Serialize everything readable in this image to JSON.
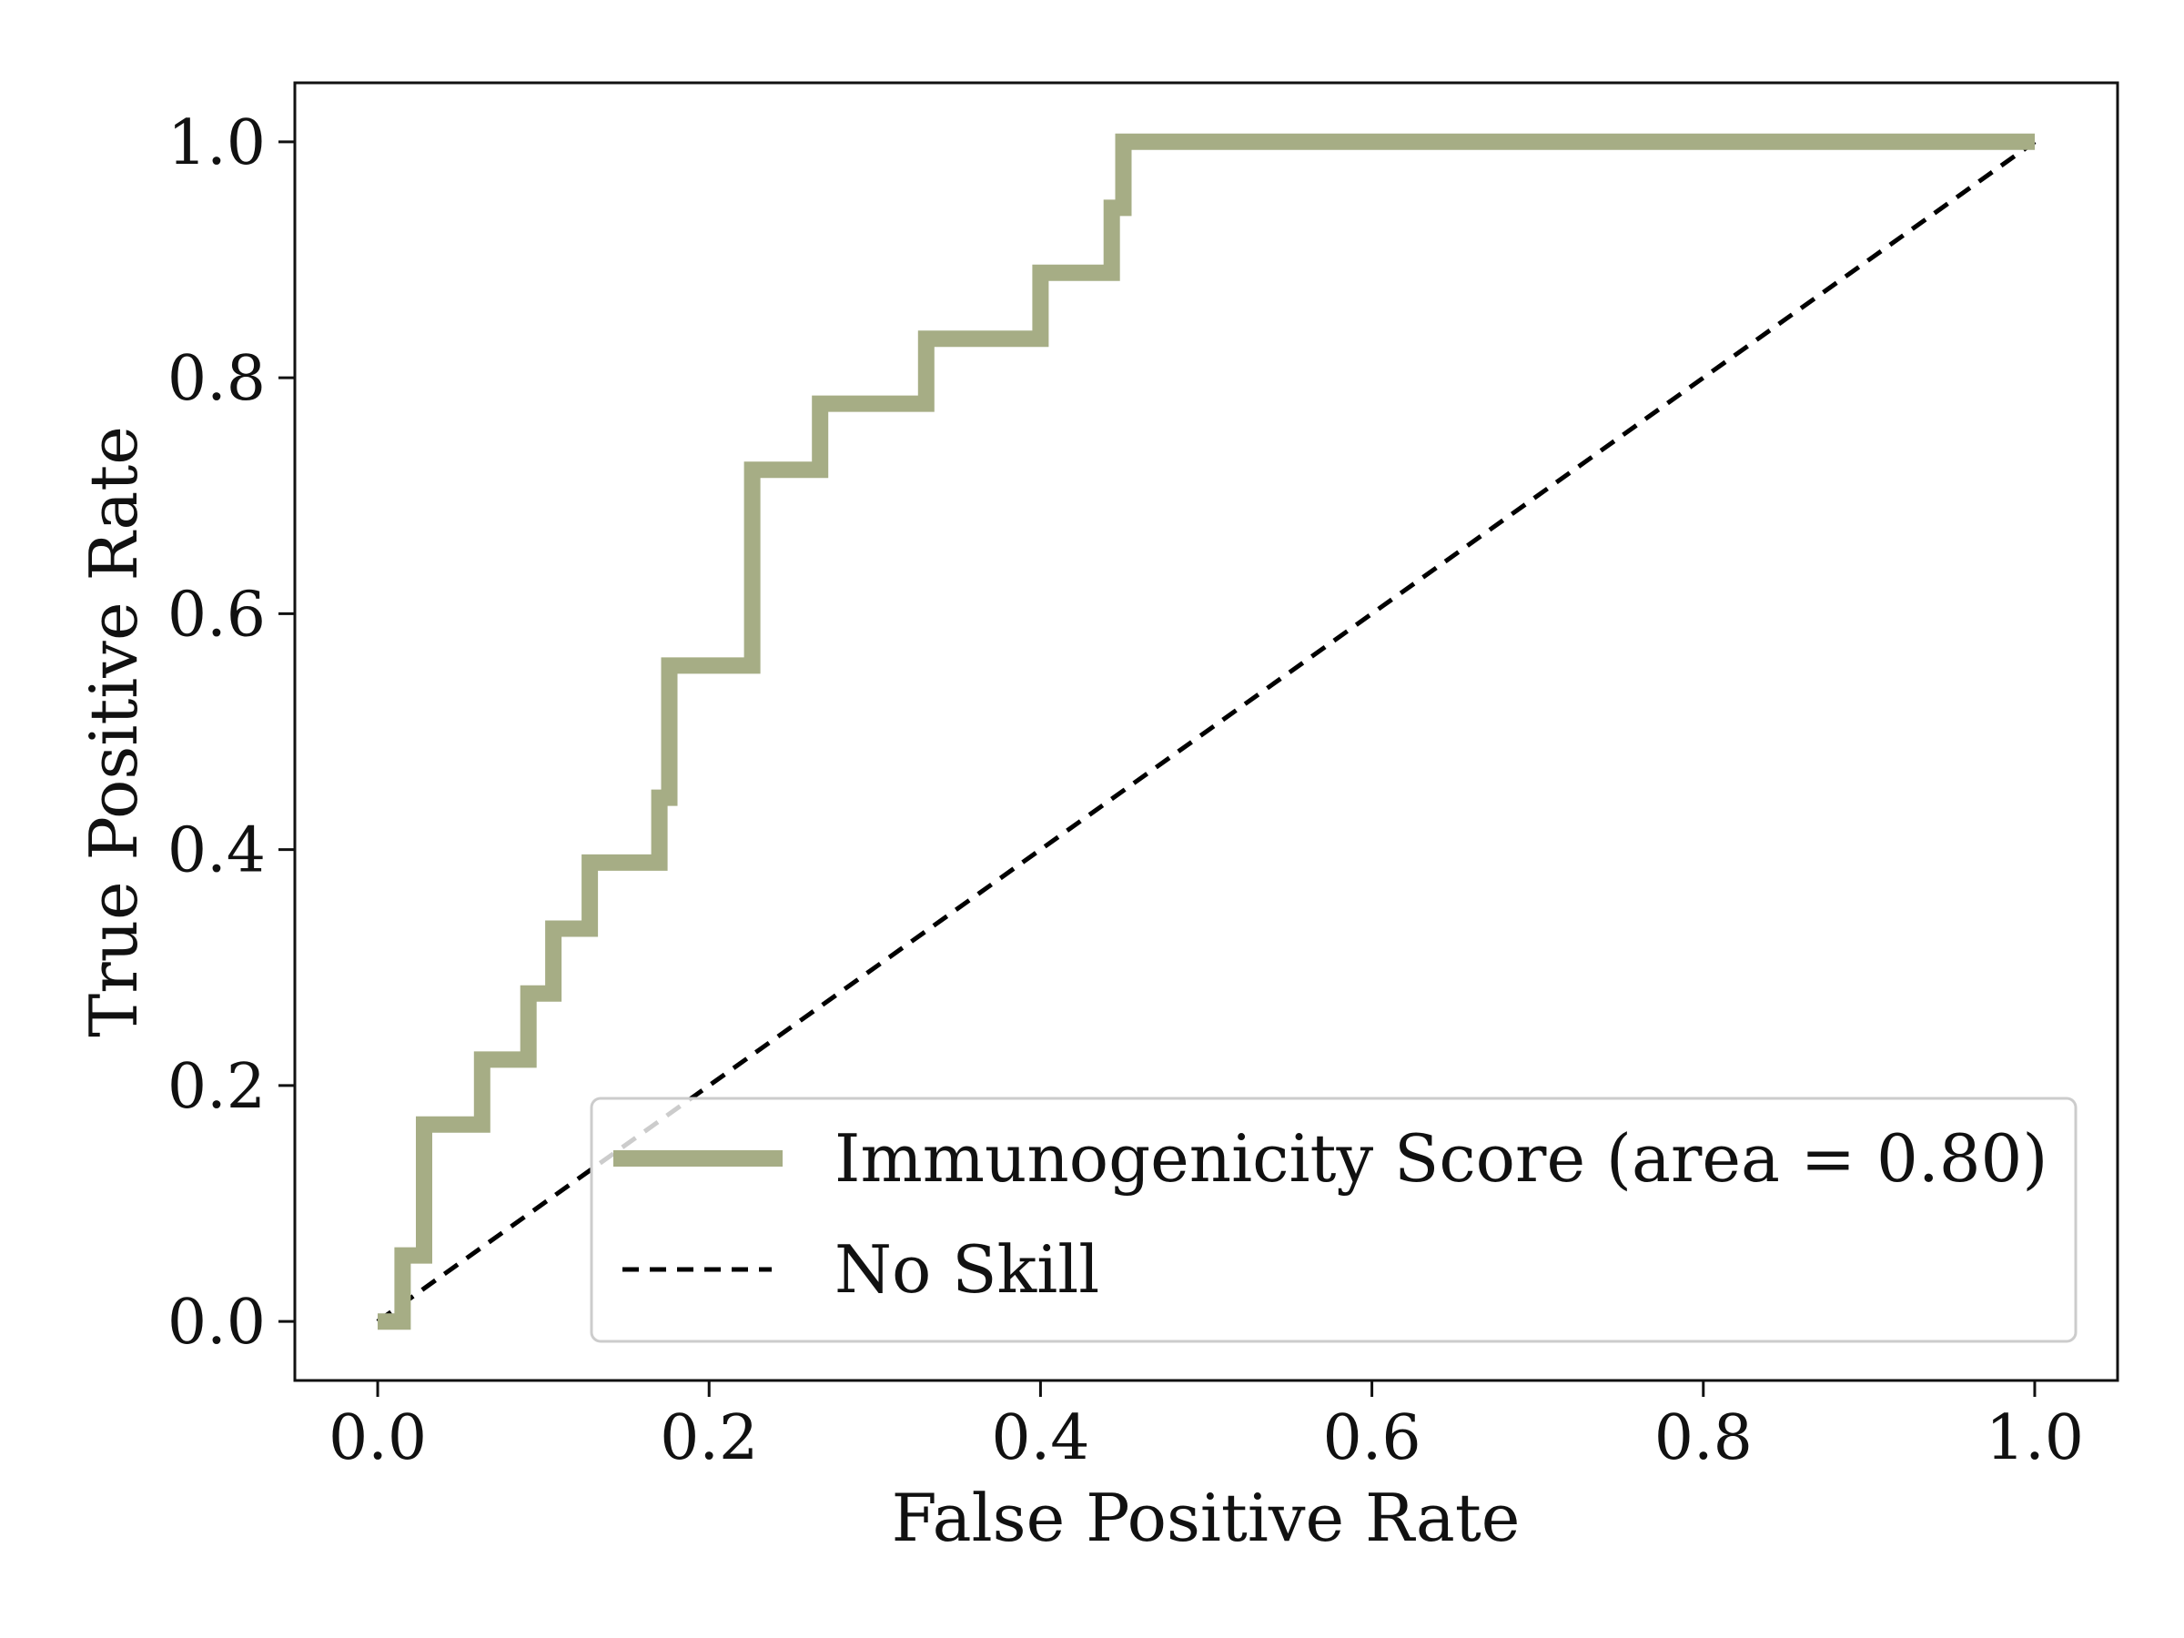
{
  "chart_data": {
    "type": "line",
    "title": "",
    "xlabel": "False Positive Rate",
    "ylabel": "True Positive Rate",
    "xlim": [
      -0.05,
      1.05
    ],
    "ylim": [
      -0.05,
      1.05
    ],
    "x_ticks": [
      "0.0",
      "0.2",
      "0.4",
      "0.6",
      "0.8",
      "1.0"
    ],
    "y_ticks": [
      "0.0",
      "0.2",
      "0.4",
      "0.6",
      "0.8",
      "1.0"
    ],
    "grid": false,
    "legend_position": "lower-right",
    "series": [
      {
        "name": "Immunogenicity Score (area = 0.80)",
        "color": "#a6ad85",
        "style": "solid",
        "x": [
          0.0,
          0.015,
          0.015,
          0.028,
          0.028,
          0.063,
          0.063,
          0.091,
          0.091,
          0.106,
          0.106,
          0.128,
          0.128,
          0.17,
          0.17,
          0.176,
          0.176,
          0.226,
          0.226,
          0.267,
          0.267,
          0.331,
          0.331,
          0.4,
          0.4,
          0.443,
          0.443,
          0.45,
          0.45,
          1.0
        ],
        "y": [
          0.0,
          0.0,
          0.056,
          0.056,
          0.167,
          0.167,
          0.222,
          0.222,
          0.278,
          0.278,
          0.333,
          0.333,
          0.389,
          0.389,
          0.444,
          0.444,
          0.556,
          0.556,
          0.722,
          0.722,
          0.778,
          0.778,
          0.833,
          0.833,
          0.889,
          0.889,
          0.944,
          0.944,
          1.0,
          1.0
        ]
      },
      {
        "name": "No Skill",
        "color": "#000000",
        "style": "dashed",
        "x": [
          0.0,
          1.0
        ],
        "y": [
          0.0,
          1.0
        ]
      }
    ]
  }
}
